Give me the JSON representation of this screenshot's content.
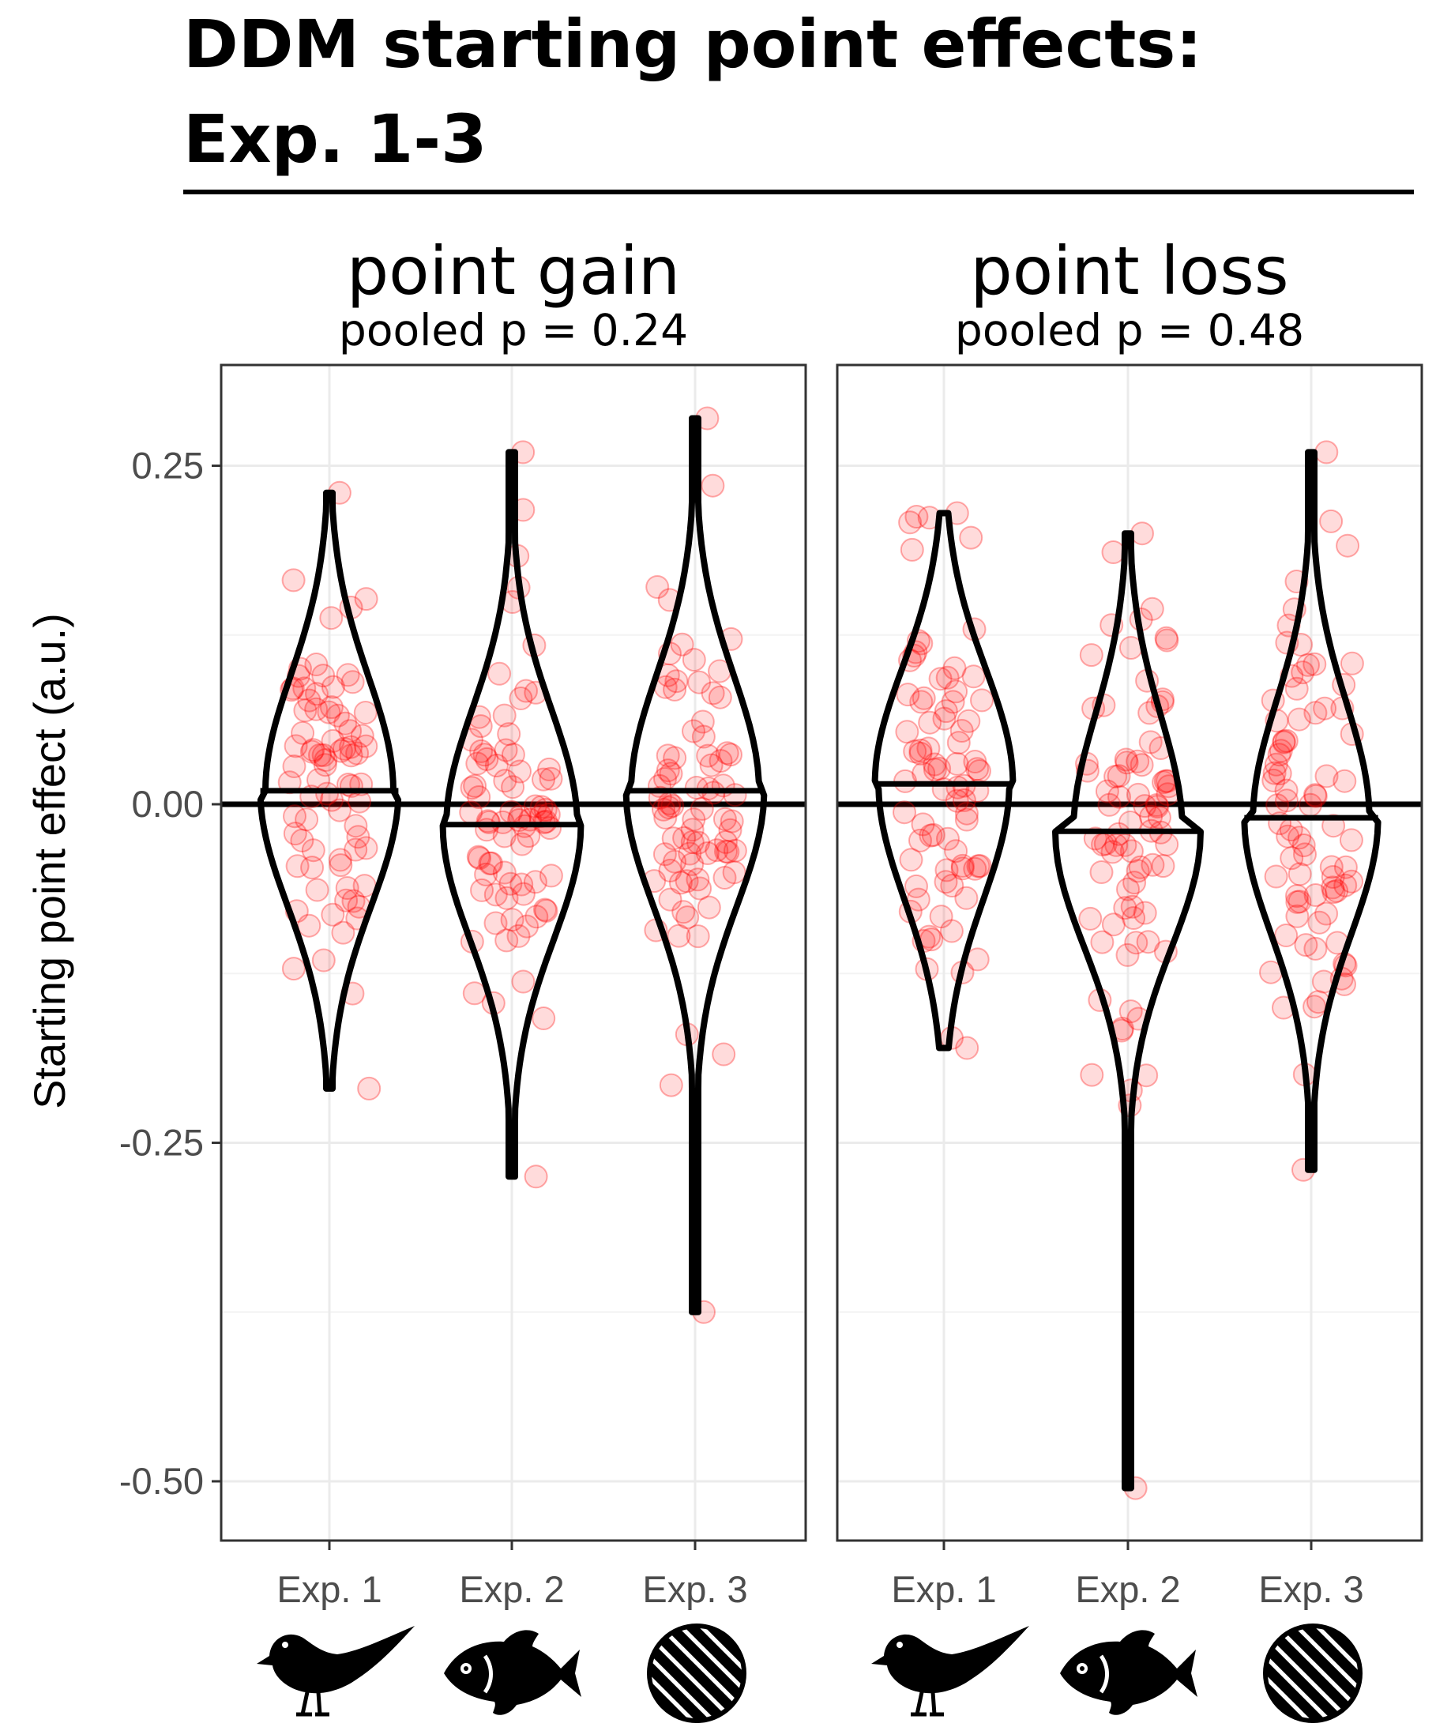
{
  "chart_data": {
    "type": "violin",
    "title_line1": "DDM starting point effects:",
    "title_line2": "Exp. 1-3",
    "ylabel": "Starting point effect (a.u.)",
    "xlabel": "",
    "ylim": [
      -0.55,
      0.32
    ],
    "yticks": [
      0.25,
      0.0,
      -0.25,
      -0.5
    ],
    "ytick_labels": [
      "0.25",
      "0.00",
      "-0.25",
      "-0.50"
    ],
    "reference_line_y": 0,
    "grid": true,
    "categories": [
      "Exp. 1",
      "Exp. 2",
      "Exp. 3"
    ],
    "category_icons": [
      "bird-icon",
      "fish-icon",
      "striped-circle-icon"
    ],
    "point_color": "#ff0000",
    "panels": [
      {
        "name": "point gain",
        "subtitle": "pooled p = 0.24",
        "groups": [
          {
            "category": "Exp. 1",
            "median": 0.01,
            "min": -0.21,
            "max": 0.23
          },
          {
            "category": "Exp. 2",
            "median": -0.015,
            "min": -0.275,
            "max": 0.26
          },
          {
            "category": "Exp. 3",
            "median": 0.01,
            "min": -0.375,
            "max": 0.285
          }
        ]
      },
      {
        "name": "point loss",
        "subtitle": "pooled p = 0.48",
        "groups": [
          {
            "category": "Exp. 1",
            "median": 0.015,
            "min": -0.18,
            "max": 0.215
          },
          {
            "category": "Exp. 2",
            "median": -0.02,
            "min": -0.505,
            "max": 0.2
          },
          {
            "category": "Exp. 3",
            "median": -0.01,
            "min": -0.27,
            "max": 0.26
          }
        ]
      }
    ]
  }
}
